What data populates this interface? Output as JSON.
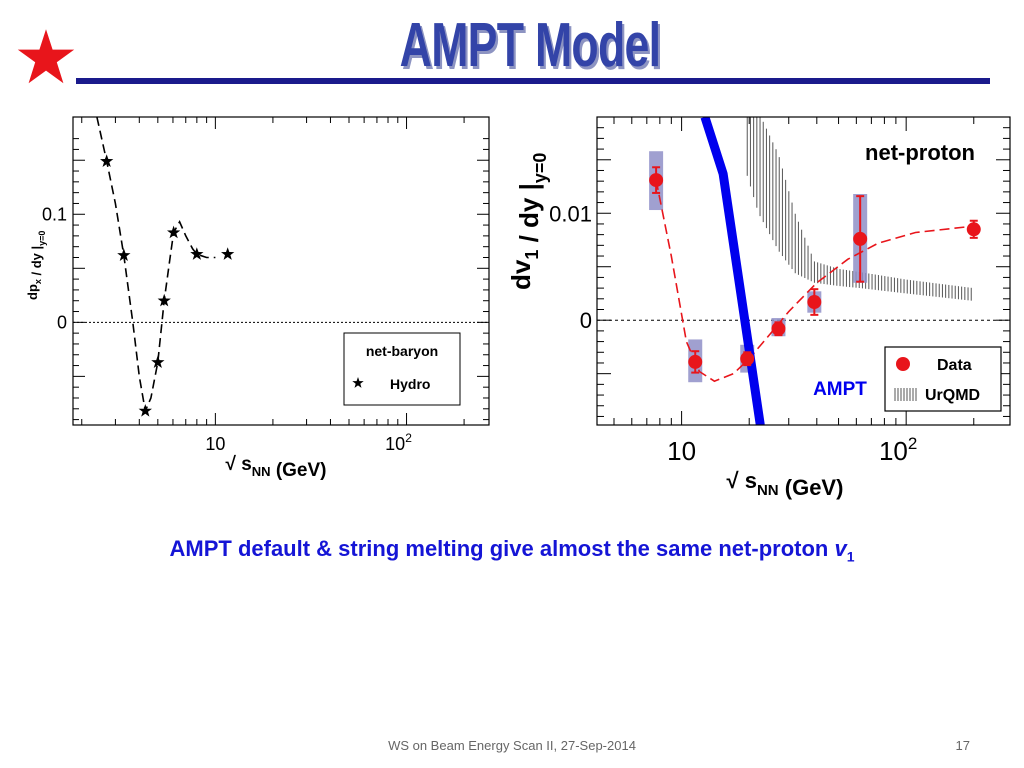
{
  "slide": {
    "title": "AMPT Model",
    "caption_main": "AMPT default & string melting give almost the same net-proton ",
    "caption_var": "v",
    "caption_sub": "1",
    "footer": "WS on Beam Energy Scan II, 27-Sep-2014",
    "page_number": "17",
    "colors": {
      "title": "#3344a8",
      "rule": "#1a1a8c",
      "caption": "#1515d6",
      "star": "#e8151b",
      "data": "#e8151b",
      "ampt_line": "#0000ee",
      "sys_band": "#8f8fc8"
    }
  },
  "chart_data": [
    {
      "type": "line",
      "xscale": "log",
      "xlim": [
        1.8,
        270
      ],
      "ylim": [
        -0.095,
        0.19
      ],
      "grid": false,
      "xticks": [
        10,
        100
      ],
      "xtick_labels": [
        "10",
        "10^2"
      ],
      "yticks": [
        0,
        0.1
      ],
      "ytick_labels": [
        "0",
        "0.1"
      ],
      "ylabel": "dp_x / dy |_y=0",
      "xlabel": "√ s_NN (GeV)",
      "legend_title": "net-baryon",
      "legend_location": "lower-right",
      "zero_line": true,
      "series": [
        {
          "name": "Hydro",
          "style": "stars",
          "x": [
            2.7,
            3.32,
            4.3,
            5.0,
            5.4,
            6.05,
            8.0,
            11.6
          ],
          "y": [
            0.149,
            0.062,
            -0.082,
            -0.037,
            0.02,
            0.083,
            0.063,
            0.063
          ]
        },
        {
          "style": "dashed-curve",
          "x": [
            2.4,
            2.7,
            3.0,
            3.32,
            3.7,
            4.0,
            4.3,
            4.6,
            5.0,
            5.4,
            5.8,
            6.05,
            6.5,
            7.0,
            7.6,
            8.0,
            9.0,
            10.0
          ],
          "y": [
            0.19,
            0.149,
            0.11,
            0.062,
            0.0,
            -0.05,
            -0.082,
            -0.07,
            -0.037,
            0.02,
            0.06,
            0.083,
            0.093,
            0.08,
            0.068,
            0.063,
            0.06,
            0.06
          ]
        }
      ]
    },
    {
      "type": "scatter",
      "xscale": "log",
      "xlim": [
        4.2,
        290
      ],
      "ylim": [
        -0.0098,
        0.019
      ],
      "grid": false,
      "xticks": [
        10,
        100
      ],
      "xtick_labels": [
        "10",
        "10^2"
      ],
      "yticks": [
        0,
        0.01
      ],
      "ytick_labels": [
        "0",
        "0.01"
      ],
      "ylabel": "dv_1 / dy |_y=0",
      "xlabel": "√ s_NN (GeV)",
      "panel_label": "net-proton",
      "legend_location": "lower-right",
      "zero_line": true,
      "annotation": "AMPT",
      "series": [
        {
          "name": "Data",
          "style": "red-points",
          "x": [
            7.7,
            11.5,
            19.6,
            27,
            39,
            62.4,
            200
          ],
          "y": [
            0.0131,
            -0.0039,
            -0.0036,
            -0.0008,
            0.0017,
            0.0076,
            0.0085
          ],
          "yerr": [
            0.0012,
            0.001,
            0.0006,
            0.0006,
            0.0012,
            0.004,
            0.0008
          ],
          "sys_low": [
            0.0103,
            -0.0058,
            -0.0049,
            -0.0015,
            0.0007,
            0.0035,
            null
          ],
          "sys_high": [
            0.0158,
            -0.0018,
            -0.0023,
            0.0002,
            0.0027,
            0.0118,
            null
          ]
        },
        {
          "style": "red-dashed-fit",
          "x": [
            7.7,
            9,
            10.5,
            12,
            14,
            17,
            20,
            25,
            30,
            40,
            55,
            75,
            110,
            200
          ],
          "y": [
            0.0131,
            0.006,
            -0.002,
            -0.0048,
            -0.0057,
            -0.005,
            -0.0036,
            -0.0012,
            0.0008,
            0.0035,
            0.0057,
            0.0072,
            0.0082,
            0.0088
          ]
        },
        {
          "name": "UrQMD",
          "style": "hatched-band",
          "x": [
            19.6,
            22,
            27,
            32,
            39,
            50,
            62.4,
            100,
            200
          ],
          "y_low": [
            0.0135,
            0.01,
            0.0065,
            0.0044,
            0.0035,
            0.0032,
            0.003,
            0.0025,
            0.0018
          ],
          "y_high": [
            0.0195,
            0.0195,
            0.0155,
            0.01,
            0.0055,
            0.0048,
            0.0045,
            0.0038,
            0.003
          ]
        },
        {
          "name": "AMPT",
          "style": "thick-blue-line",
          "x": [
            12.7,
            15.3,
            22.4
          ],
          "y": [
            0.019,
            0.0137,
            -0.0098
          ]
        }
      ]
    }
  ]
}
